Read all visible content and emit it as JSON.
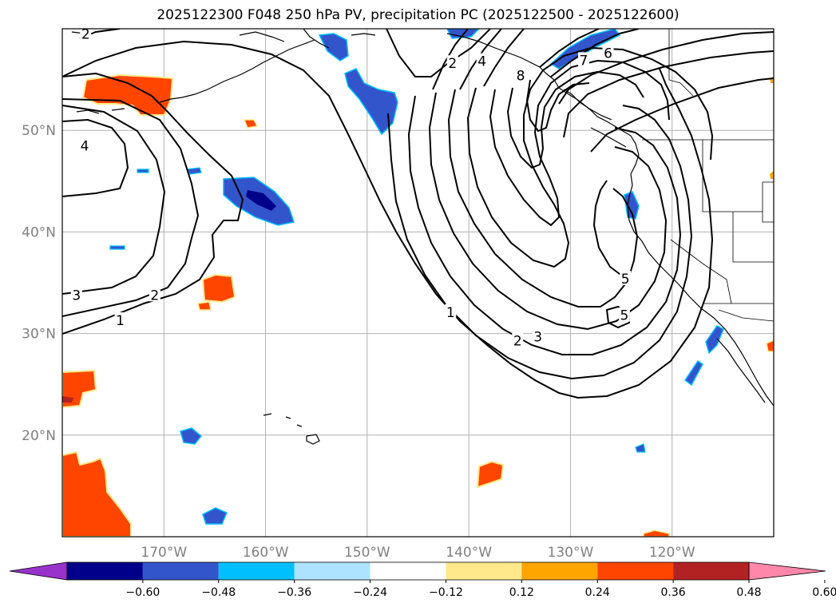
{
  "title": "2025122300 F048 250 hPa PV, precipitation PC (2025122500 - 2025122600)",
  "map": {
    "lon_range": [
      -180,
      -110
    ],
    "lat_range": [
      10,
      60
    ],
    "lon_labels": [
      {
        "lon": -170,
        "text": "170°W"
      },
      {
        "lon": -160,
        "text": "160°W"
      },
      {
        "lon": -150,
        "text": "150°W"
      },
      {
        "lon": -140,
        "text": "140°W"
      },
      {
        "lon": -130,
        "text": "130°W"
      },
      {
        "lon": -120,
        "text": "120°W"
      }
    ],
    "lat_labels": [
      {
        "lat": 50,
        "text": "50°N"
      },
      {
        "lat": 40,
        "text": "40°N"
      },
      {
        "lat": 30,
        "text": "30°N"
      },
      {
        "lat": 20,
        "text": "20°N"
      }
    ],
    "gridlines": true,
    "contour_labels": [
      {
        "text": "2",
        "lon": -177.7,
        "lat": 59.5
      },
      {
        "text": "4",
        "lon": -177.8,
        "lat": 48.5
      },
      {
        "text": "3",
        "lon": -178.6,
        "lat": 33.8
      },
      {
        "text": "2",
        "lon": -170.9,
        "lat": 33.8
      },
      {
        "text": "1",
        "lon": -174.3,
        "lat": 31.3
      },
      {
        "text": "2",
        "lon": -141.6,
        "lat": 56.6
      },
      {
        "text": "4",
        "lon": -138.7,
        "lat": 56.8
      },
      {
        "text": "8",
        "lon": -134.9,
        "lat": 55.4
      },
      {
        "text": "7",
        "lon": -128.7,
        "lat": 56.9
      },
      {
        "text": "6",
        "lon": -126.3,
        "lat": 57.6
      },
      {
        "text": "5",
        "lon": -124.6,
        "lat": 35.4
      },
      {
        "text": "5",
        "lon": -124.7,
        "lat": 31.8
      },
      {
        "text": "1",
        "lon": -141.8,
        "lat": 32.1
      },
      {
        "text": "2",
        "lon": -135.2,
        "lat": 29.3
      },
      {
        "text": "3",
        "lon": -133.2,
        "lat": 29.7
      }
    ]
  },
  "colorbar": {
    "ticks": [
      "−0.60",
      "−0.48",
      "−0.36",
      "−0.24",
      "−0.12",
      "0.12",
      "0.24",
      "0.36",
      "0.48",
      "0.60"
    ],
    "colors": [
      "#9932cc",
      "#00008b",
      "#3355cc",
      "#00bfff",
      "#aee3ff",
      "#ffffff",
      "#ffe98a",
      "#ffa500",
      "#ff4500",
      "#b22222",
      "#ff88aa"
    ]
  },
  "colors": {
    "ocean": "#ffffff",
    "contour": "#000000",
    "coastline": "#000000",
    "grid": "#b0b0b0"
  }
}
